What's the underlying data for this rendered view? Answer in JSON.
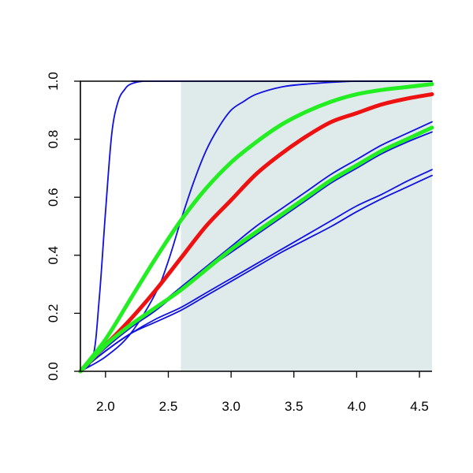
{
  "chart_data": {
    "type": "line",
    "title": "",
    "xlabel": "",
    "ylabel": "",
    "xlim": [
      1.8,
      4.6
    ],
    "ylim": [
      0.0,
      1.0
    ],
    "x_ticks": [
      "2.0",
      "2.5",
      "3.0",
      "3.5",
      "4.0",
      "4.5"
    ],
    "y_ticks": [
      "0.0",
      "0.2",
      "0.4",
      "0.6",
      "0.8",
      "1.0"
    ],
    "grid": false,
    "legend": "none",
    "shaded_region": {
      "x_from": 2.6,
      "x_to": 4.6,
      "color": "#dfeaea"
    },
    "colors": {
      "blue": "#1010e0",
      "green": "#22ee22",
      "red": "#ee1111",
      "axis": "#000000"
    },
    "series": [
      {
        "color": "blue",
        "width": "thin",
        "x": [
          1.8,
          1.9,
          1.95,
          2.0,
          2.05,
          2.1,
          2.15,
          2.2,
          2.3,
          2.4,
          4.6
        ],
        "y": [
          0.0,
          0.05,
          0.25,
          0.55,
          0.82,
          0.93,
          0.97,
          0.99,
          1.0,
          1.0,
          1.0
        ]
      },
      {
        "color": "blue",
        "width": "thin",
        "x": [
          1.8,
          2.0,
          2.2,
          2.4,
          2.5,
          2.6,
          2.7,
          2.8,
          2.9,
          3.0,
          3.1,
          3.2,
          3.4,
          3.6,
          4.0,
          4.6
        ],
        "y": [
          0.0,
          0.05,
          0.13,
          0.27,
          0.38,
          0.52,
          0.65,
          0.76,
          0.84,
          0.9,
          0.93,
          0.955,
          0.98,
          0.99,
          1.0,
          1.0
        ]
      },
      {
        "color": "blue",
        "width": "thin",
        "x": [
          1.8,
          2.0,
          2.2,
          2.4,
          2.6,
          2.8,
          3.0,
          3.2,
          3.4,
          3.6,
          3.8,
          4.0,
          4.2,
          4.4,
          4.6
        ],
        "y": [
          0.0,
          0.09,
          0.16,
          0.22,
          0.29,
          0.36,
          0.43,
          0.5,
          0.56,
          0.62,
          0.68,
          0.73,
          0.78,
          0.82,
          0.86
        ]
      },
      {
        "color": "blue",
        "width": "thin",
        "x": [
          1.8,
          2.0,
          2.2,
          2.4,
          2.6,
          2.8,
          3.0,
          3.2,
          3.4,
          3.6,
          3.8,
          4.0,
          4.2,
          4.4,
          4.6
        ],
        "y": [
          0.0,
          0.08,
          0.15,
          0.21,
          0.28,
          0.35,
          0.41,
          0.47,
          0.53,
          0.59,
          0.65,
          0.7,
          0.75,
          0.79,
          0.825
        ]
      },
      {
        "color": "blue",
        "width": "thin",
        "x": [
          1.8,
          2.0,
          2.2,
          2.4,
          2.6,
          2.8,
          3.0,
          3.2,
          3.4,
          3.6,
          3.8,
          4.0,
          4.2,
          4.4,
          4.6
        ],
        "y": [
          0.0,
          0.07,
          0.13,
          0.18,
          0.22,
          0.27,
          0.32,
          0.37,
          0.42,
          0.47,
          0.52,
          0.57,
          0.61,
          0.655,
          0.695
        ]
      },
      {
        "color": "blue",
        "width": "thin",
        "x": [
          1.8,
          2.0,
          2.2,
          2.4,
          2.6,
          2.8,
          3.0,
          3.2,
          3.4,
          3.6,
          3.8,
          4.0,
          4.2,
          4.4,
          4.6
        ],
        "y": [
          0.0,
          0.07,
          0.13,
          0.17,
          0.21,
          0.26,
          0.31,
          0.36,
          0.41,
          0.455,
          0.5,
          0.55,
          0.595,
          0.635,
          0.675
        ]
      },
      {
        "color": "green",
        "width": "thick",
        "x": [
          1.8,
          2.0,
          2.2,
          2.4,
          2.6,
          2.8,
          3.0,
          3.2,
          3.4,
          3.6,
          3.8,
          4.0,
          4.2,
          4.4,
          4.6
        ],
        "y": [
          0.0,
          0.11,
          0.25,
          0.39,
          0.52,
          0.63,
          0.72,
          0.79,
          0.85,
          0.895,
          0.93,
          0.955,
          0.97,
          0.98,
          0.99
        ]
      },
      {
        "color": "red",
        "width": "thick",
        "x": [
          1.8,
          2.0,
          2.2,
          2.4,
          2.6,
          2.8,
          3.0,
          3.2,
          3.4,
          3.6,
          3.8,
          4.0,
          4.2,
          4.4,
          4.6
        ],
        "y": [
          0.0,
          0.09,
          0.18,
          0.28,
          0.39,
          0.5,
          0.59,
          0.68,
          0.75,
          0.81,
          0.86,
          0.89,
          0.92,
          0.94,
          0.955
        ]
      },
      {
        "color": "green",
        "width": "thick",
        "x": [
          1.8,
          2.0,
          2.2,
          2.4,
          2.6,
          2.8,
          3.0,
          3.2,
          3.4,
          3.6,
          3.8,
          4.0,
          4.2,
          4.4,
          4.6
        ],
        "y": [
          0.0,
          0.09,
          0.16,
          0.22,
          0.28,
          0.35,
          0.42,
          0.48,
          0.54,
          0.6,
          0.66,
          0.71,
          0.76,
          0.8,
          0.84
        ]
      }
    ]
  }
}
